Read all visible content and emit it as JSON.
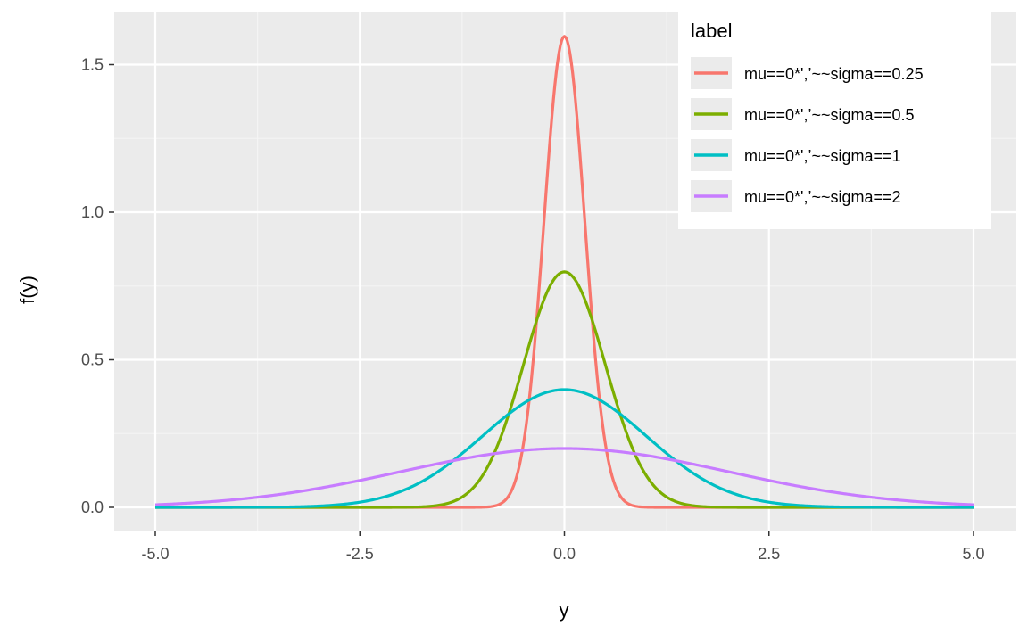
{
  "chart_data": {
    "type": "line",
    "xlabel": "y",
    "ylabel": "f(y)",
    "xlim": [
      -5.0,
      5.0
    ],
    "ylim": [
      -0.08,
      1.68
    ],
    "xticks": [
      -5.0,
      -2.5,
      0.0,
      2.5,
      5.0
    ],
    "xtick_labels": [
      "-5.0",
      "-2.5",
      "0.0",
      "2.5",
      "5.0"
    ],
    "yticks": [
      0.0,
      0.5,
      1.0,
      1.5
    ],
    "ytick_labels": [
      "0.0",
      "0.5",
      "1.0",
      "1.5"
    ],
    "grid": true,
    "legend": {
      "title": "label",
      "placement": "top-right, inside plot"
    },
    "series": [
      {
        "name": "mu==0*',’~~sigma==0.25",
        "mu": 0,
        "sigma": 0.25,
        "color": "#F8766D"
      },
      {
        "name": "mu==0*',’~~sigma==0.5",
        "mu": 0,
        "sigma": 0.5,
        "color": "#7CAE00"
      },
      {
        "name": "mu==0*',’~~sigma==1",
        "mu": 0,
        "sigma": 1,
        "color": "#00BFC4"
      },
      {
        "name": "mu==0*',’~~sigma==2",
        "mu": 0,
        "sigma": 2,
        "color": "#C77CFF"
      }
    ]
  }
}
